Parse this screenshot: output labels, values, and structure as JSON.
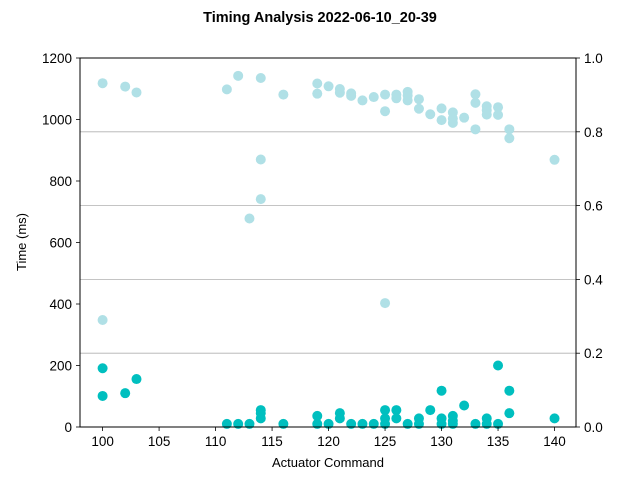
{
  "chart_data": {
    "type": "scatter",
    "title": "Timing Analysis 2022-06-10_20-39",
    "xlabel": "Actuator Command",
    "ylabel": "Time (ms)",
    "xlim": [
      98,
      141.9
    ],
    "ylim": [
      0,
      1200
    ],
    "y2lim": [
      0,
      1.0
    ],
    "x_ticks": [
      100,
      105,
      110,
      115,
      120,
      125,
      130,
      135,
      140
    ],
    "y_ticks": [
      0,
      200,
      400,
      600,
      800,
      1000,
      1200
    ],
    "y2_ticks": [
      0.0,
      0.2,
      0.4,
      0.6,
      0.8,
      1.0
    ],
    "grid": "horizontal lines at right-axis ticks",
    "series": [
      {
        "color": "#b0e0e6",
        "points": [
          [
            100,
            1118
          ],
          [
            100,
            348
          ],
          [
            102,
            1107
          ],
          [
            103,
            1088
          ],
          [
            111,
            1098
          ],
          [
            112,
            1142
          ],
          [
            113,
            678
          ],
          [
            114,
            1135
          ],
          [
            114,
            870
          ],
          [
            114,
            741
          ],
          [
            116,
            1081
          ],
          [
            119,
            1117
          ],
          [
            119,
            1084
          ],
          [
            120,
            1108
          ],
          [
            121,
            1099
          ],
          [
            121,
            1087
          ],
          [
            122,
            1085
          ],
          [
            122,
            1077
          ],
          [
            123,
            1062
          ],
          [
            124,
            1073
          ],
          [
            125,
            1081
          ],
          [
            125,
            1027
          ],
          [
            125,
            403
          ],
          [
            126,
            1081
          ],
          [
            126,
            1069
          ],
          [
            127,
            1090
          ],
          [
            127,
            1078
          ],
          [
            127,
            1062
          ],
          [
            128,
            1066
          ],
          [
            128,
            1035
          ],
          [
            129,
            1017
          ],
          [
            130,
            1036
          ],
          [
            130,
            998
          ],
          [
            131,
            1023
          ],
          [
            131,
            1003
          ],
          [
            131,
            989
          ],
          [
            132,
            1006
          ],
          [
            133,
            1082
          ],
          [
            133,
            1054
          ],
          [
            133,
            968
          ],
          [
            134,
            1043
          ],
          [
            134,
            1030
          ],
          [
            134,
            1016
          ],
          [
            135,
            1040
          ],
          [
            135,
            1015
          ],
          [
            136,
            968
          ],
          [
            136,
            939
          ],
          [
            140,
            869
          ]
        ]
      },
      {
        "color": "#00bfbf",
        "points": [
          [
            100,
            191
          ],
          [
            100,
            101
          ],
          [
            102,
            110
          ],
          [
            103,
            156
          ],
          [
            111,
            10
          ],
          [
            112,
            10
          ],
          [
            113,
            10
          ],
          [
            114,
            55
          ],
          [
            114,
            45
          ],
          [
            114,
            28
          ],
          [
            116,
            10
          ],
          [
            119,
            36
          ],
          [
            119,
            10
          ],
          [
            120,
            10
          ],
          [
            121,
            45
          ],
          [
            121,
            28
          ],
          [
            122,
            10
          ],
          [
            123,
            10
          ],
          [
            124,
            10
          ],
          [
            125,
            55
          ],
          [
            125,
            28
          ],
          [
            125,
            10
          ],
          [
            126,
            55
          ],
          [
            126,
            28
          ],
          [
            127,
            10
          ],
          [
            128,
            28
          ],
          [
            128,
            10
          ],
          [
            129,
            55
          ],
          [
            130,
            118
          ],
          [
            130,
            28
          ],
          [
            130,
            10
          ],
          [
            131,
            36
          ],
          [
            131,
            20
          ],
          [
            131,
            10
          ],
          [
            132,
            70
          ],
          [
            133,
            10
          ],
          [
            134,
            28
          ],
          [
            134,
            10
          ],
          [
            135,
            200
          ],
          [
            135,
            10
          ],
          [
            136,
            118
          ],
          [
            136,
            45
          ],
          [
            140,
            28
          ]
        ]
      }
    ]
  }
}
